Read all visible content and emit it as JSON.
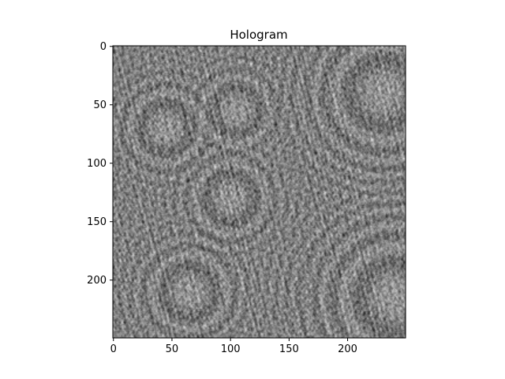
{
  "chart_data": {
    "type": "heatmap",
    "title": "Hologram",
    "xlabel": "",
    "ylabel": "",
    "image_shape": [
      250,
      250
    ],
    "xlim": [
      -0.5,
      249.5
    ],
    "ylim": [
      249.5,
      -0.5
    ],
    "x_ticks": [
      0,
      50,
      100,
      150,
      200
    ],
    "y_ticks": [
      0,
      50,
      100,
      150,
      200
    ],
    "x_tick_labels": [
      "0",
      "50",
      "100",
      "150",
      "200"
    ],
    "y_tick_labels": [
      "0",
      "50",
      "100",
      "150",
      "200"
    ],
    "colormap": "gray",
    "value_range": [
      0,
      1
    ],
    "mean_value": 0.5,
    "grid": false,
    "legend": "none",
    "description_features": [
      {
        "center_x": 45,
        "center_y": 70,
        "radius": 50
      },
      {
        "center_x": 105,
        "center_y": 55,
        "radius": 45
      },
      {
        "center_x": 100,
        "center_y": 130,
        "radius": 50
      },
      {
        "center_x": 65,
        "center_y": 210,
        "radius": 55
      },
      {
        "center_x": 230,
        "center_y": 40,
        "radius": 90
      },
      {
        "center_x": 240,
        "center_y": 215,
        "radius": 100
      }
    ]
  },
  "colors": {
    "axes": "#000000",
    "background": "#ffffff"
  }
}
